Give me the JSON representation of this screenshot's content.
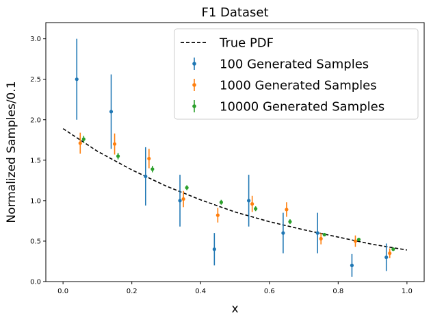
{
  "chart_data": {
    "type": "scatter",
    "title": "F1 Dataset",
    "xlabel": "x",
    "ylabel": "Normalized Samples/0.1",
    "xlim": [
      -0.05,
      1.05
    ],
    "ylim": [
      0.0,
      3.2
    ],
    "xticks": [
      "0.0",
      "0.2",
      "0.4",
      "0.6",
      "0.8",
      "1.0"
    ],
    "yticks": [
      "0.0",
      "0.5",
      "1.0",
      "1.5",
      "2.0",
      "2.5",
      "3.0"
    ],
    "grid": false,
    "legend_position": "top-right",
    "true_pdf": {
      "name": "True PDF",
      "style": "dashed",
      "color": "#000000",
      "x": [
        0.0,
        0.1,
        0.2,
        0.3,
        0.4,
        0.5,
        0.6,
        0.7,
        0.8,
        0.9,
        1.0
      ],
      "y": [
        1.89,
        1.61,
        1.38,
        1.18,
        1.01,
        0.86,
        0.74,
        0.64,
        0.55,
        0.46,
        0.39
      ]
    },
    "series": [
      {
        "name": "100 Generated Samples",
        "color": "#1f77b4",
        "x": [
          0.04,
          0.14,
          0.24,
          0.34,
          0.44,
          0.54,
          0.64,
          0.74,
          0.84,
          0.94
        ],
        "y": [
          2.5,
          2.1,
          1.3,
          1.0,
          0.4,
          1.0,
          0.6,
          0.6,
          0.2,
          0.3
        ],
        "yerr": [
          0.5,
          0.46,
          0.36,
          0.32,
          0.2,
          0.32,
          0.25,
          0.25,
          0.14,
          0.17
        ]
      },
      {
        "name": "1000 Generated Samples",
        "color": "#ff7f0e",
        "x": [
          0.05,
          0.15,
          0.25,
          0.35,
          0.45,
          0.55,
          0.65,
          0.75,
          0.85,
          0.95
        ],
        "y": [
          1.71,
          1.7,
          1.52,
          1.02,
          0.82,
          0.96,
          0.89,
          0.53,
          0.5,
          0.35
        ],
        "yerr": [
          0.13,
          0.13,
          0.12,
          0.1,
          0.09,
          0.1,
          0.09,
          0.07,
          0.07,
          0.06
        ]
      },
      {
        "name": "10000 Generated Samples",
        "color": "#2ca02c",
        "x": [
          0.06,
          0.16,
          0.26,
          0.36,
          0.46,
          0.56,
          0.66,
          0.76,
          0.86,
          0.96
        ],
        "y": [
          1.76,
          1.55,
          1.39,
          1.16,
          0.98,
          0.9,
          0.74,
          0.58,
          0.52,
          0.4
        ],
        "yerr": [
          0.04,
          0.04,
          0.04,
          0.03,
          0.03,
          0.03,
          0.03,
          0.02,
          0.02,
          0.02
        ]
      }
    ]
  }
}
